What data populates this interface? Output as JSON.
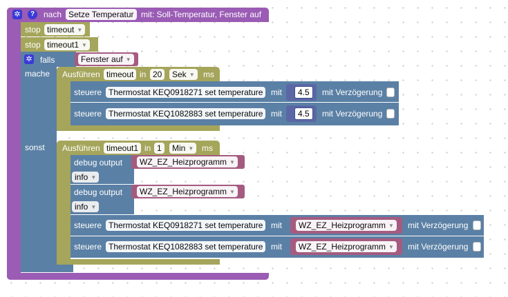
{
  "proc": {
    "label_nach": "nach",
    "name": "Setze Temperatur",
    "label_mit": "mit: Soll-Temperatur, Fenster auf",
    "gear": "gear-icon",
    "help": "?"
  },
  "stop1": {
    "label": "stop",
    "value": "timeout"
  },
  "stop2": {
    "label": "stop",
    "value": "timeout1"
  },
  "ifblock": {
    "falls": "falls",
    "condition": "Fenster auf",
    "mache": "mache",
    "sonst": "sonst"
  },
  "timeout_do": {
    "label_run": "Ausführen",
    "name": "timeout",
    "label_in": "in",
    "amount": "20",
    "unit": "Sek",
    "suffix": "ms",
    "rows": [
      {
        "label": "steuere",
        "target": "Thermostat KEQ0918271 set temperature",
        "mit": "mit",
        "value": "4.5",
        "delay_label": "mit Verzögerung"
      },
      {
        "label": "steuere",
        "target": "Thermostat KEQ1082883 set temperature",
        "mit": "mit",
        "value": "4.5",
        "delay_label": "mit Verzögerung"
      }
    ]
  },
  "timeout_else": {
    "label_run": "Ausführen",
    "name": "timeout1",
    "label_in": "in",
    "amount": "1",
    "unit": "Min",
    "suffix": "ms",
    "debug": [
      {
        "label": "debug output",
        "value": "WZ_EZ_Heizprogramm",
        "level": "info"
      },
      {
        "label": "debug output",
        "value": "WZ_EZ_Heizprogramm",
        "level": "info"
      }
    ],
    "rows": [
      {
        "label": "steuere",
        "target": "Thermostat KEQ0918271 set temperature",
        "mit": "mit",
        "value": "WZ_EZ_Heizprogramm",
        "delay_label": "mit Verzögerung"
      },
      {
        "label": "steuere",
        "target": "Thermostat KEQ1082883 set temperature",
        "mit": "mit",
        "value": "WZ_EZ_Heizprogramm",
        "delay_label": "mit Verzögerung"
      }
    ]
  },
  "colors": {
    "procedure": "#9a5cb4",
    "control": "#a5a55b",
    "logic": "#5b80a5",
    "text": "#a55b80"
  }
}
